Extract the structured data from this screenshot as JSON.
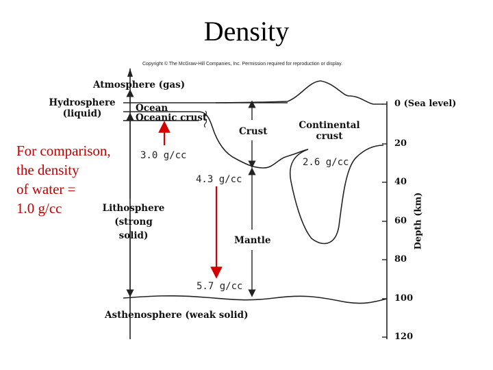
{
  "title": "Density",
  "copyright": "Copyright © The McGraw-Hill Companies, Inc. Permission required for reproduction or display.",
  "labels": {
    "atmosphere": "Atmosphere (gas)",
    "hydrosphere_line1": "Hydrosphere",
    "hydrosphere_line2": "(liquid)",
    "ocean": "Ocean",
    "oceanic_crust": "Oceanic crust",
    "crust": "Crust",
    "continental_crust_line1": "Continental",
    "continental_crust_line2": "crust",
    "lithosphere_line1": "Lithosphere",
    "lithosphere_line2": "(strong",
    "lithosphere_line3": "solid)",
    "mantle": "Mantle",
    "asthenosphere": "Asthenosphere (weak solid)"
  },
  "densities": {
    "oceanic": "3.0 g/cc",
    "continental": "2.6 g/cc",
    "upper_mantle": "4.3 g/cc",
    "deeper_mantle": "5.7 g/cc"
  },
  "comparison": {
    "line1": "For comparison,",
    "line2": "the density",
    "line3": "of water =",
    "line4": "1.0 g/cc"
  },
  "depth_axis": {
    "title": "Depth (km)",
    "ticks": [
      {
        "label": "0  (Sea level)"
      },
      {
        "label": "20"
      },
      {
        "label": "40"
      },
      {
        "label": "60"
      },
      {
        "label": "80"
      },
      {
        "label": "100"
      },
      {
        "label": "120"
      }
    ]
  },
  "colors": {
    "arrow_red": "#d40000",
    "line": "#222222"
  }
}
